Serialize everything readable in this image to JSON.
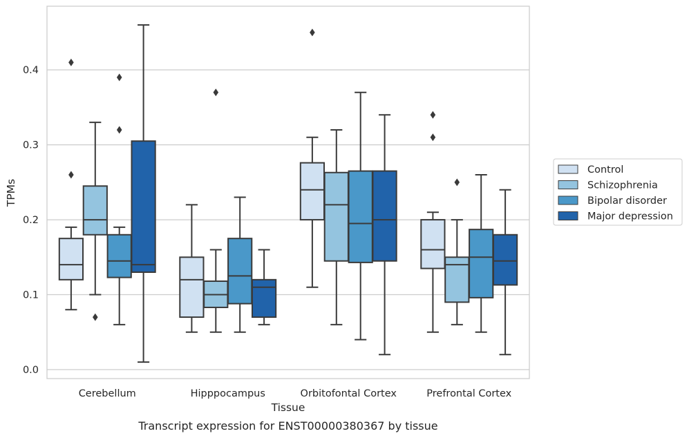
{
  "chart_data": {
    "type": "boxplot",
    "caption": "Transcript expression for ENST00000380367 by tissue",
    "xlabel": "Tissue",
    "ylabel": "TPMs",
    "ylim": [
      -0.012,
      0.485
    ],
    "yticks": [
      0.0,
      0.1,
      0.2,
      0.3,
      0.4
    ],
    "ytick_labels": [
      "0.0",
      "0.1",
      "0.2",
      "0.3",
      "0.4"
    ],
    "grid": "horizontal",
    "legend_position": "right",
    "categories": [
      "Cerebellum",
      "Hipppocampus",
      "Orbitofontal Cortex",
      "Prefrontal Cortex"
    ],
    "series": [
      {
        "name": "Control",
        "color": "#d0e1f2",
        "boxes": [
          {
            "whislo": 0.08,
            "q1": 0.12,
            "med": 0.14,
            "q3": 0.175,
            "whishi": 0.19,
            "fliers": [
              0.26,
              0.41
            ]
          },
          {
            "whislo": 0.05,
            "q1": 0.07,
            "med": 0.12,
            "q3": 0.15,
            "whishi": 0.22,
            "fliers": []
          },
          {
            "whislo": 0.11,
            "q1": 0.2,
            "med": 0.24,
            "q3": 0.276,
            "whishi": 0.31,
            "fliers": [
              0.45
            ]
          },
          {
            "whislo": 0.05,
            "q1": 0.135,
            "med": 0.16,
            "q3": 0.2,
            "whishi": 0.21,
            "fliers": [
              0.31,
              0.34
            ]
          }
        ]
      },
      {
        "name": "Schizophrenia",
        "color": "#94c4df",
        "boxes": [
          {
            "whislo": 0.1,
            "q1": 0.18,
            "med": 0.2,
            "q3": 0.245,
            "whishi": 0.33,
            "fliers": [
              0.07
            ]
          },
          {
            "whislo": 0.05,
            "q1": 0.083,
            "med": 0.1,
            "q3": 0.118,
            "whishi": 0.16,
            "fliers": [
              0.37
            ]
          },
          {
            "whislo": 0.06,
            "q1": 0.145,
            "med": 0.22,
            "q3": 0.263,
            "whishi": 0.32,
            "fliers": []
          },
          {
            "whislo": 0.06,
            "q1": 0.09,
            "med": 0.14,
            "q3": 0.15,
            "whishi": 0.2,
            "fliers": [
              0.25
            ]
          }
        ]
      },
      {
        "name": "Bipolar disorder",
        "color": "#4a98c9",
        "boxes": [
          {
            "whislo": 0.06,
            "q1": 0.123,
            "med": 0.145,
            "q3": 0.18,
            "whishi": 0.19,
            "fliers": [
              0.32,
              0.39
            ]
          },
          {
            "whislo": 0.05,
            "q1": 0.088,
            "med": 0.125,
            "q3": 0.175,
            "whishi": 0.23,
            "fliers": []
          },
          {
            "whislo": 0.04,
            "q1": 0.143,
            "med": 0.195,
            "q3": 0.265,
            "whishi": 0.37,
            "fliers": []
          },
          {
            "whislo": 0.05,
            "q1": 0.096,
            "med": 0.15,
            "q3": 0.187,
            "whishi": 0.26,
            "fliers": []
          }
        ]
      },
      {
        "name": "Major depression",
        "color": "#2163aa",
        "boxes": [
          {
            "whislo": 0.01,
            "q1": 0.13,
            "med": 0.14,
            "q3": 0.305,
            "whishi": 0.46,
            "fliers": []
          },
          {
            "whislo": 0.06,
            "q1": 0.07,
            "med": 0.11,
            "q3": 0.12,
            "whishi": 0.16,
            "fliers": []
          },
          {
            "whislo": 0.02,
            "q1": 0.145,
            "med": 0.2,
            "q3": 0.265,
            "whishi": 0.34,
            "fliers": []
          },
          {
            "whislo": 0.02,
            "q1": 0.113,
            "med": 0.145,
            "q3": 0.18,
            "whishi": 0.24,
            "fliers": []
          }
        ]
      }
    ]
  }
}
